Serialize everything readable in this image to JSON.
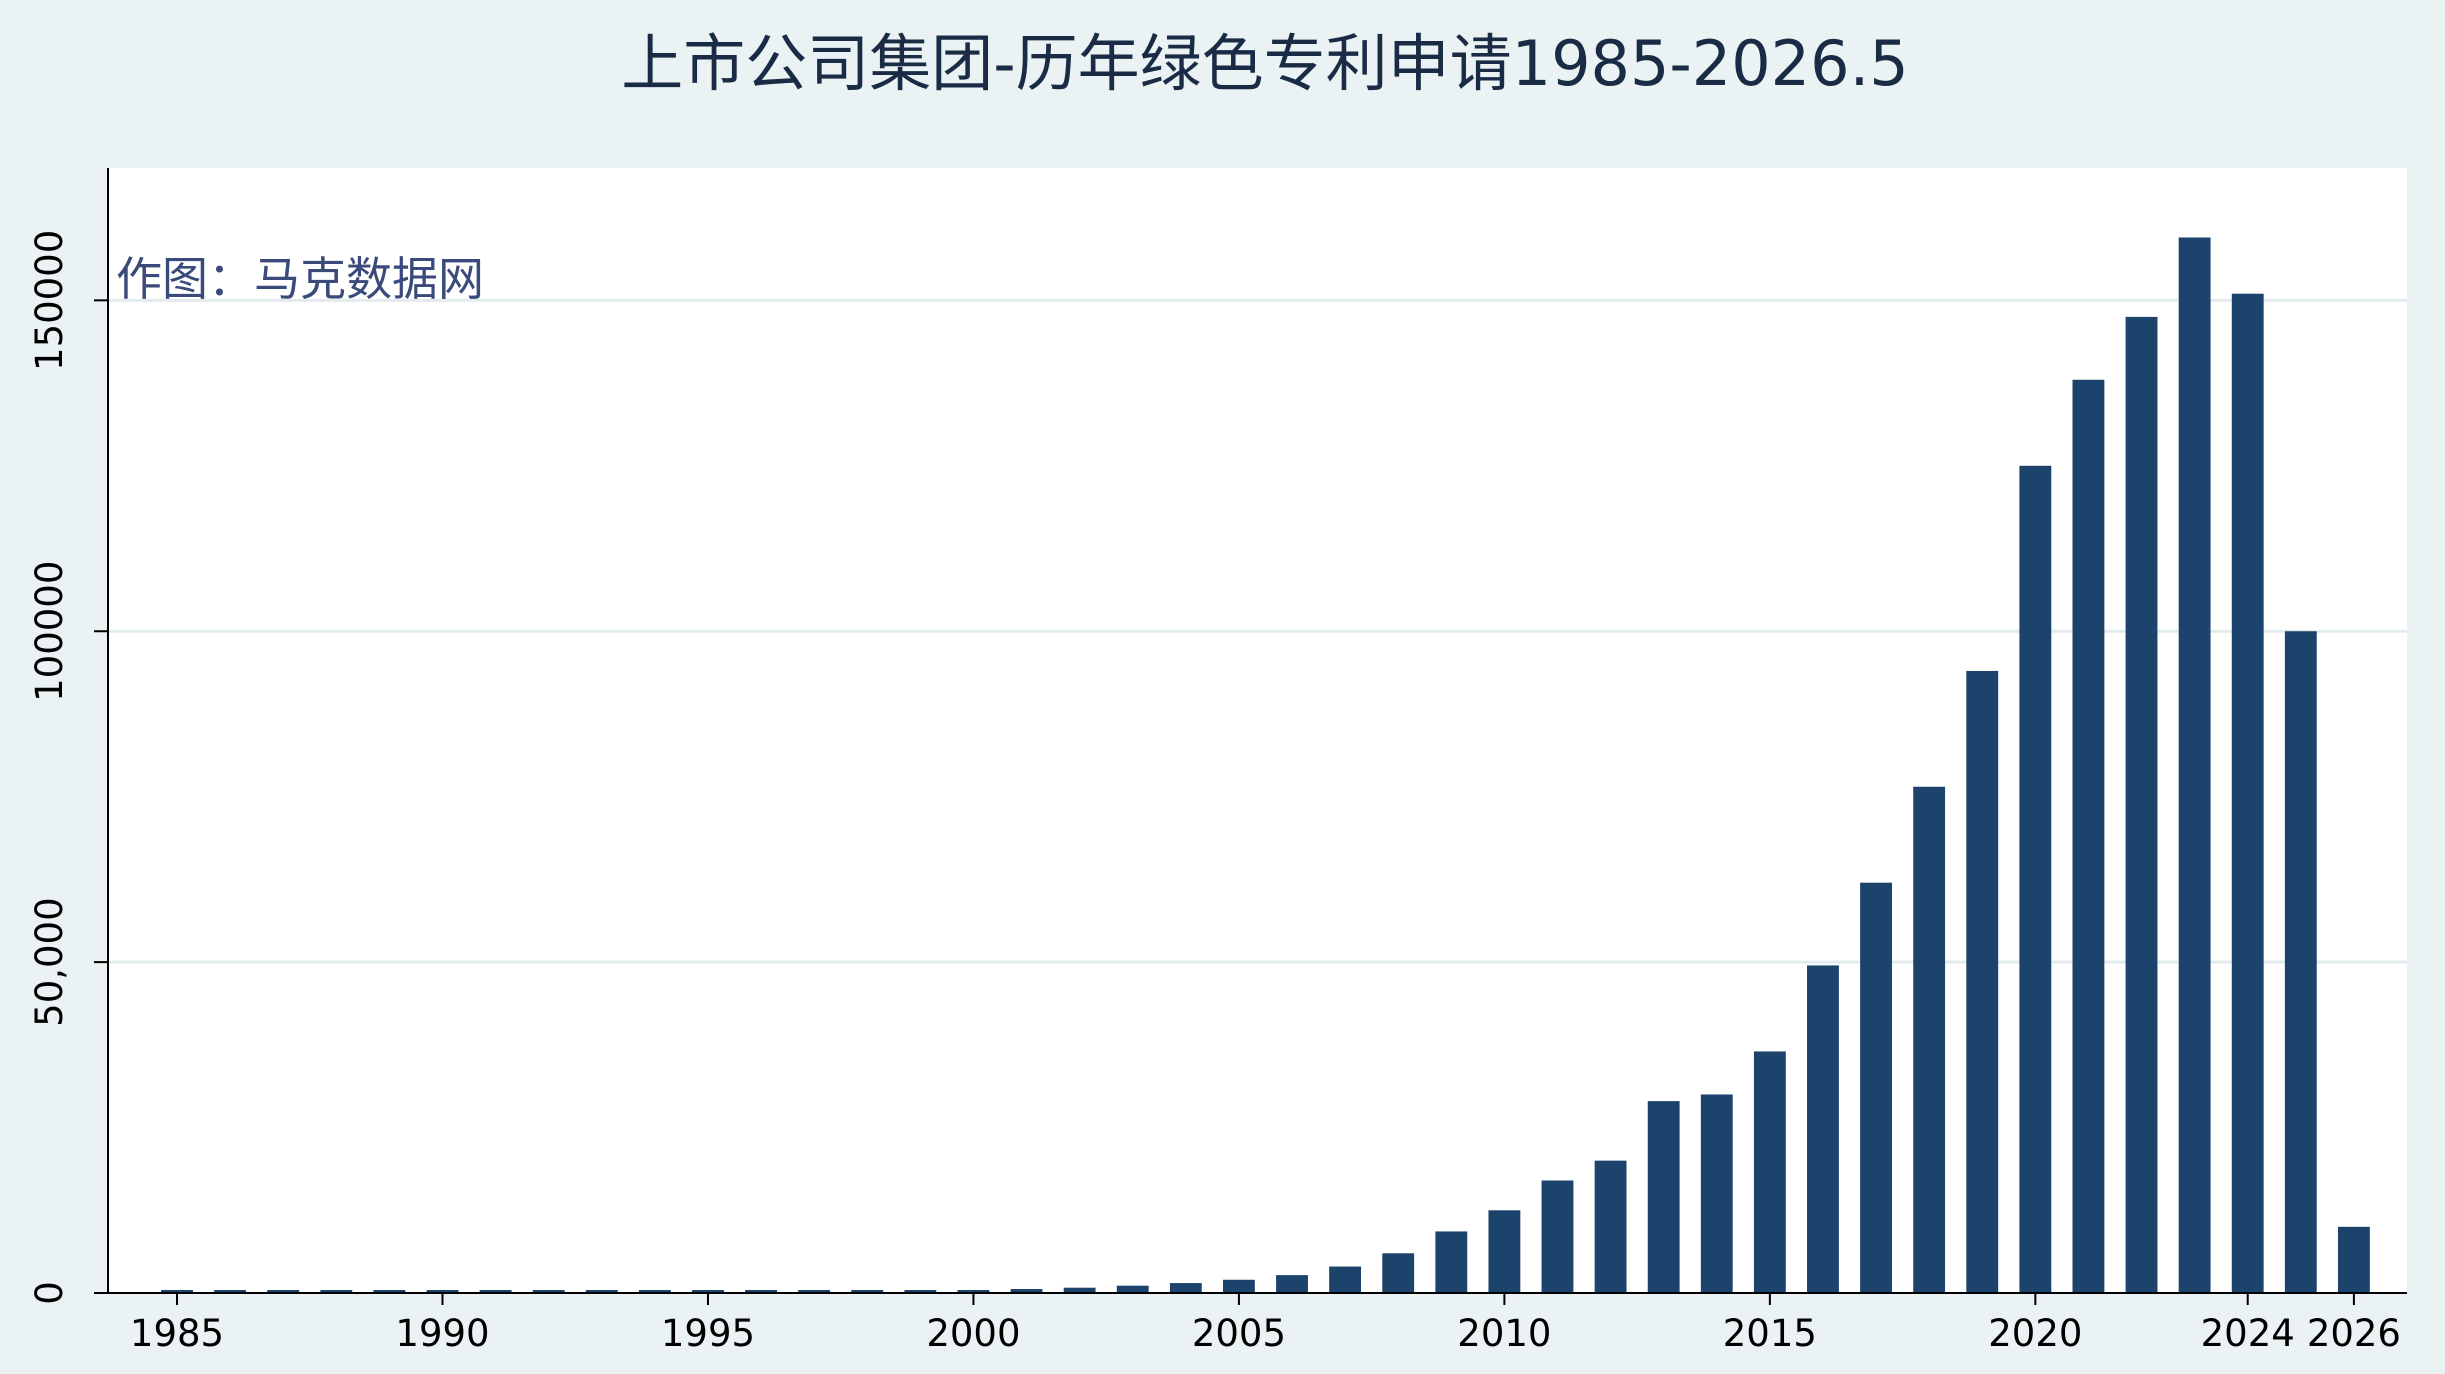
{
  "chart_data": {
    "type": "bar",
    "title": "上市公司集团-历年绿色专利申请1985-2026.5",
    "annotation": "作图：马克数据网",
    "xlabel": "",
    "ylabel": "",
    "x": [
      1985,
      1986,
      1987,
      1988,
      1989,
      1990,
      1991,
      1992,
      1993,
      1994,
      1995,
      1996,
      1997,
      1998,
      1999,
      2000,
      2001,
      2002,
      2003,
      2004,
      2005,
      2006,
      2007,
      2008,
      2009,
      2010,
      2011,
      2012,
      2013,
      2014,
      2015,
      2016,
      2017,
      2018,
      2019,
      2020,
      2021,
      2022,
      2023,
      2024,
      2025,
      2026
    ],
    "values": [
      50,
      60,
      80,
      90,
      100,
      120,
      130,
      140,
      160,
      180,
      200,
      220,
      260,
      300,
      350,
      450,
      600,
      800,
      1100,
      1500,
      2000,
      2700,
      4000,
      6000,
      9300,
      12500,
      17000,
      20000,
      29000,
      30000,
      36500,
      49500,
      62000,
      76500,
      94000,
      125000,
      138000,
      147500,
      159500,
      151000,
      100000,
      10000
    ],
    "ylim": [
      0,
      170000
    ],
    "x_ticks": [
      "1985",
      "1990",
      "1995",
      "2000",
      "2005",
      "2010",
      "2015",
      "2020",
      "2024",
      "2026"
    ],
    "x_tick_values": [
      1985,
      1990,
      1995,
      2000,
      2005,
      2010,
      2015,
      2020,
      2024,
      2026
    ],
    "y_ticks": [
      "0",
      "50,000",
      "100000",
      "150000"
    ],
    "y_tick_values": [
      0,
      50000,
      100000,
      150000
    ],
    "grid": true,
    "legend": false,
    "colors": {
      "bar": "#1c436b",
      "background": "#eaf2f3",
      "plot_background": "#ffffff",
      "grid": "#e2ecef",
      "title": "#1a2b45",
      "annotation": "#3a4a7a"
    }
  }
}
